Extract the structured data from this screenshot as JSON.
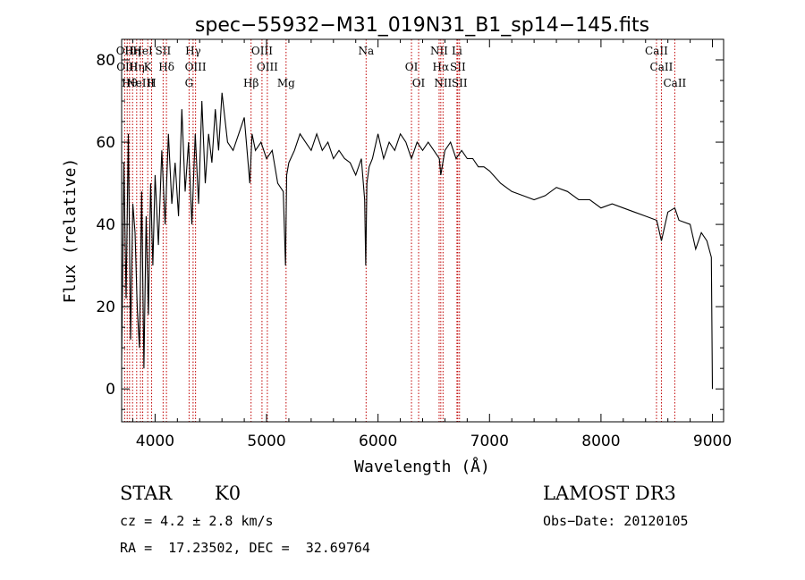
{
  "chart_data": {
    "type": "line",
    "title": "spec−55932−M31_019N31_B1_sp14−145.fits",
    "xlabel": "Wavelength (Å)",
    "ylabel": "Flux (relative)",
    "xlim": [
      3700,
      9100
    ],
    "ylim": [
      -8,
      85
    ],
    "xticks": [
      4000,
      5000,
      6000,
      7000,
      8000,
      9000
    ],
    "yticks": [
      0,
      20,
      40,
      60,
      80
    ],
    "grid": false,
    "line_color": "#000000",
    "marker_color": "#c00000",
    "series": [
      {
        "name": "flux",
        "x": [
          3700,
          3720,
          3740,
          3760,
          3780,
          3800,
          3820,
          3840,
          3860,
          3880,
          3900,
          3920,
          3940,
          3960,
          3980,
          4000,
          4030,
          4060,
          4090,
          4120,
          4150,
          4180,
          4210,
          4240,
          4270,
          4300,
          4330,
          4360,
          4390,
          4420,
          4450,
          4480,
          4510,
          4540,
          4570,
          4600,
          4650,
          4700,
          4750,
          4800,
          4850,
          4870,
          4900,
          4950,
          5000,
          5050,
          5100,
          5150,
          5170,
          5180,
          5200,
          5250,
          5300,
          5350,
          5400,
          5450,
          5500,
          5550,
          5600,
          5650,
          5700,
          5750,
          5800,
          5850,
          5880,
          5890,
          5900,
          5920,
          5950,
          6000,
          6050,
          6100,
          6150,
          6200,
          6250,
          6300,
          6350,
          6400,
          6450,
          6500,
          6550,
          6563,
          6600,
          6650,
          6700,
          6750,
          6800,
          6850,
          6900,
          6950,
          7000,
          7100,
          7200,
          7300,
          7400,
          7500,
          7600,
          7700,
          7800,
          7900,
          8000,
          8100,
          8200,
          8300,
          8400,
          8500,
          8542,
          8600,
          8662,
          8700,
          8800,
          8850,
          8900,
          8950,
          8990,
          9000
        ],
        "y": [
          7,
          55,
          22,
          62,
          12,
          45,
          38,
          20,
          10,
          48,
          5,
          42,
          18,
          50,
          30,
          52,
          35,
          58,
          40,
          62,
          45,
          55,
          42,
          68,
          48,
          60,
          40,
          62,
          45,
          70,
          50,
          62,
          55,
          68,
          58,
          72,
          60,
          58,
          62,
          66,
          50,
          62,
          58,
          60,
          56,
          58,
          50,
          48,
          30,
          52,
          55,
          58,
          62,
          60,
          58,
          62,
          58,
          60,
          56,
          58,
          56,
          55,
          52,
          56,
          46,
          30,
          50,
          54,
          56,
          62,
          56,
          60,
          58,
          62,
          60,
          56,
          60,
          58,
          60,
          58,
          56,
          52,
          58,
          60,
          56,
          58,
          56,
          56,
          54,
          54,
          53,
          50,
          48,
          47,
          46,
          47,
          49,
          48,
          46,
          46,
          44,
          45,
          44,
          43,
          42,
          41,
          36,
          43,
          44,
          41,
          40,
          34,
          38,
          36,
          32,
          0
        ]
      }
    ],
    "line_markers": [
      {
        "wl": 3727,
        "label": "OII"
      },
      {
        "wl": 3750,
        "label": "OIII"
      },
      {
        "wl": 3771,
        "label": "Hθ"
      },
      {
        "wl": 3798,
        "label": "Hη"
      },
      {
        "wl": 3835,
        "label": "Hη"
      },
      {
        "wl": 3869,
        "label": "NeIII"
      },
      {
        "wl": 3889,
        "label": "HeI"
      },
      {
        "wl": 3934,
        "label": "K"
      },
      {
        "wl": 3969,
        "label": "H"
      },
      {
        "wl": 4072,
        "label": "SII"
      },
      {
        "wl": 4102,
        "label": "Hδ"
      },
      {
        "wl": 4305,
        "label": "G"
      },
      {
        "wl": 4341,
        "label": "Hγ"
      },
      {
        "wl": 4363,
        "label": "OIII"
      },
      {
        "wl": 4861,
        "label": "Hβ"
      },
      {
        "wl": 4959,
        "label": "OIII"
      },
      {
        "wl": 5007,
        "label": "OIII"
      },
      {
        "wl": 5175,
        "label": "Mg"
      },
      {
        "wl": 5893,
        "label": "Na"
      },
      {
        "wl": 6300,
        "label": "OI"
      },
      {
        "wl": 6364,
        "label": "OI"
      },
      {
        "wl": 6548,
        "label": "NII"
      },
      {
        "wl": 6563,
        "label": "Hα"
      },
      {
        "wl": 6583,
        "label": "NII"
      },
      {
        "wl": 6708,
        "label": "Li"
      },
      {
        "wl": 6716,
        "label": "SII"
      },
      {
        "wl": 6731,
        "label": "SII"
      },
      {
        "wl": 8498,
        "label": "CaII"
      },
      {
        "wl": 8542,
        "label": "CaII"
      },
      {
        "wl": 8662,
        "label": "CaII"
      }
    ],
    "annotations": {
      "obj_class": "STAR",
      "subclass": "K0",
      "survey": "LAMOST DR3",
      "redshift": "cz = 4.2 ± 2.8 km/s",
      "obs_date": "Obs−Date: 20120105",
      "coords": "RA =  17.23502, DEC =  32.69764"
    }
  }
}
